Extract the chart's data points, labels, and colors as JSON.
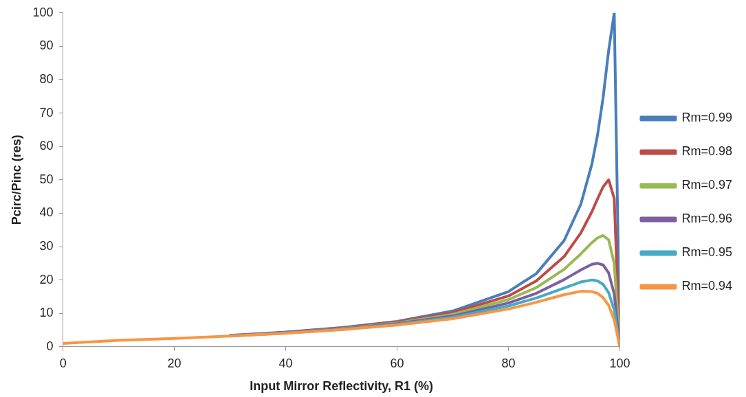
{
  "chart_data": {
    "type": "line",
    "xlabel": "Input Mirror Reflectivity, R1 (%)",
    "ylabel": "Pcirc/Pinc (res)",
    "x": [
      0,
      10,
      20,
      30,
      40,
      50,
      60,
      70,
      80,
      85,
      90,
      93,
      95,
      96,
      97,
      98,
      99,
      100
    ],
    "series": [
      {
        "name": "Rm=0.99",
        "color": "#4a7ebb",
        "values": [
          null,
          null,
          null,
          3.4,
          4.4,
          5.7,
          7.6,
          10.7,
          16.5,
          21.9,
          31.8,
          42.7,
          54.8,
          63.4,
          74.6,
          88.8,
          100,
          0
        ]
      },
      {
        "name": "Rm=0.98",
        "color": "#be4b48",
        "values": [
          null,
          null,
          null,
          3.3,
          4.3,
          5.6,
          7.4,
          10.2,
          15.2,
          19.7,
          27.0,
          34.1,
          40.5,
          44.3,
          47.9,
          50.0,
          44.4,
          0
        ]
      },
      {
        "name": "Rm=0.97",
        "color": "#98b954",
        "values": [
          null,
          null,
          null,
          3.3,
          4.2,
          5.4,
          7.1,
          9.7,
          14.1,
          17.7,
          23.2,
          27.8,
          31.2,
          32.6,
          33.3,
          32.0,
          24.9,
          0
        ]
      },
      {
        "name": "Rm=0.96",
        "color": "#7d5fa0",
        "values": [
          null,
          null,
          null,
          3.3,
          4.2,
          5.3,
          6.9,
          9.2,
          13.1,
          16.0,
          20.1,
          23.0,
          24.7,
          25.0,
          24.5,
          22.1,
          15.8,
          0
        ]
      },
      {
        "name": "Rm=0.95",
        "color": "#46aac5",
        "values": [
          null,
          null,
          null,
          3.2,
          4.1,
          5.2,
          6.7,
          8.8,
          12.2,
          14.6,
          17.6,
          19.4,
          20.0,
          19.7,
          18.7,
          16.2,
          11.0,
          0
        ]
      },
      {
        "name": "Rm=0.94",
        "color": "#f79646",
        "values": [
          1,
          1.9,
          2.5,
          3.2,
          4.0,
          5.1,
          6.5,
          8.4,
          11.3,
          13.3,
          15.6,
          16.6,
          16.5,
          16.0,
          14.7,
          12.4,
          8.0,
          0
        ]
      }
    ],
    "xlim": [
      0,
      100
    ],
    "xticks": [
      0,
      20,
      40,
      60,
      80,
      100
    ],
    "ylim": [
      0,
      100
    ],
    "yticks": [
      0,
      10,
      20,
      30,
      40,
      50,
      60,
      70,
      80,
      90,
      100
    ],
    "grid": false,
    "legend": "right",
    "marker": "none",
    "line_style": "solid"
  }
}
